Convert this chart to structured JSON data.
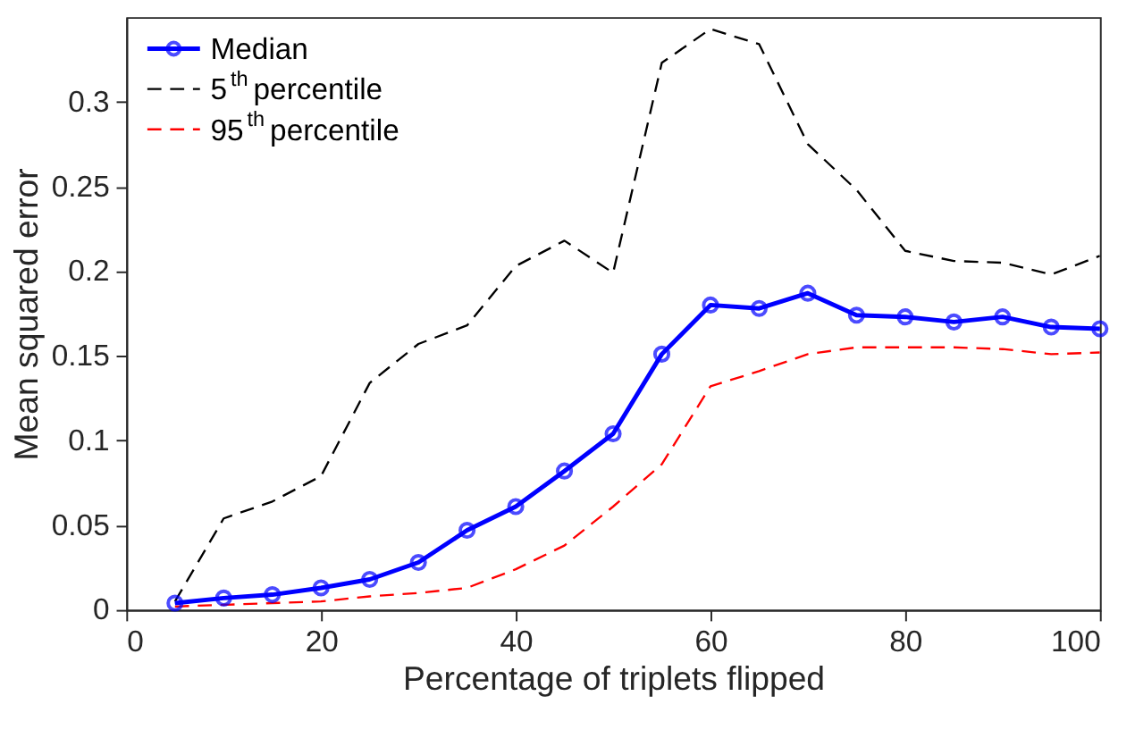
{
  "chart_data": {
    "type": "line",
    "xlabel": "Percentage of triplets flipped",
    "ylabel": "Mean squared error",
    "x": [
      5,
      10,
      15,
      20,
      25,
      30,
      35,
      40,
      45,
      50,
      55,
      60,
      65,
      70,
      75,
      80,
      85,
      90,
      95,
      100
    ],
    "xlim": [
      0,
      100
    ],
    "xticks": [
      0,
      20,
      40,
      60,
      80,
      100
    ],
    "ylim": [
      0,
      0.35
    ],
    "yticks": [
      0,
      0.05,
      0.1,
      0.15,
      0.2,
      0.25,
      0.3
    ],
    "grid": false,
    "legend": "top left",
    "series": [
      {
        "name": "Median",
        "color": "#0000ff",
        "line_style": "solid",
        "marker": "circle",
        "values": [
          0.004,
          0.007,
          0.009,
          0.013,
          0.018,
          0.028,
          0.047,
          0.061,
          0.082,
          0.104,
          0.151,
          0.18,
          0.178,
          0.187,
          0.174,
          0.173,
          0.17,
          0.173,
          0.167,
          0.166
        ]
      },
      {
        "name": "5$^{th}$ percentile",
        "color": "#000000",
        "line_style": "dashed",
        "marker": "none",
        "values": [
          0.005,
          0.054,
          0.064,
          0.079,
          0.134,
          0.157,
          0.168,
          0.203,
          0.218,
          0.199,
          0.323,
          0.343,
          0.334,
          0.275,
          0.248,
          0.212,
          0.206,
          0.205,
          0.198,
          0.209
        ]
      },
      {
        "name": "95$^{th}$ percentile",
        "color": "#ff0000",
        "line_style": "dashed",
        "marker": "none",
        "values": [
          0.002,
          0.003,
          0.004,
          0.005,
          0.008,
          0.01,
          0.013,
          0.024,
          0.038,
          0.061,
          0.086,
          0.132,
          0.141,
          0.151,
          0.155,
          0.155,
          0.155,
          0.154,
          0.151,
          0.152
        ]
      }
    ]
  }
}
